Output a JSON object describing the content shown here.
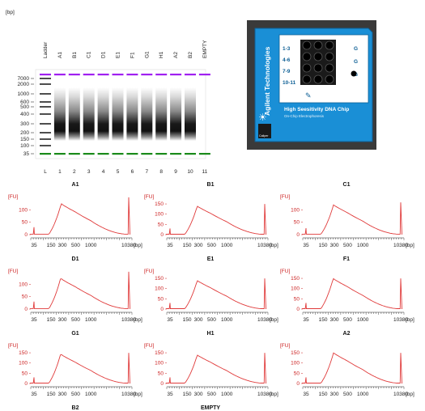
{
  "gel": {
    "unit_label": "[bp]",
    "y_ticks": [
      "7000",
      "2000",
      "1000",
      "600",
      "500",
      "400",
      "300",
      "200",
      "150",
      "100",
      "35"
    ],
    "lanes_top": [
      "Ladder",
      "A1",
      "B1",
      "C1",
      "D1",
      "E1",
      "F1",
      "G1",
      "H1",
      "A2",
      "B2",
      "EMPTY"
    ],
    "lanes_bottom": [
      "L",
      "1",
      "2",
      "3",
      "4",
      "5",
      "6",
      "7",
      "8",
      "9",
      "10",
      "11"
    ],
    "upper_marker_color": "#a020f0",
    "lower_marker_color": "#1b8a1b"
  },
  "chip": {
    "brand": "Agilent Technologies",
    "title": "High Seesitivity DNA Chip",
    "subtitle": "On-Chip Electrophoresis",
    "maker": "Caliper",
    "rows": [
      "1-3",
      "4-6",
      "7-9",
      "10-11"
    ],
    "side_labels": [
      "G",
      "G",
      "G"
    ],
    "color": "#1a8fd6"
  },
  "chart_data": [
    {
      "type": "line",
      "title": "A1",
      "ylabel": "[FU]",
      "xlabel": "[bp]",
      "y_ticks": [
        0,
        50,
        100
      ],
      "x_ticks": [
        "35",
        "150",
        "300",
        "500",
        "1000",
        "10380"
      ],
      "peak_fu": 125,
      "peak_bp": 280,
      "marker_fu": 150
    },
    {
      "type": "line",
      "title": "B1",
      "ylabel": "[FU]",
      "xlabel": "[bp]",
      "y_ticks": [
        0,
        50,
        100,
        150
      ],
      "x_ticks": [
        "35",
        "150",
        "300",
        "500",
        "1000",
        "10380"
      ],
      "peak_fu": 140,
      "peak_bp": 280,
      "marker_fu": 150
    },
    {
      "type": "line",
      "title": "C1",
      "ylabel": "[FU]",
      "xlabel": "[bp]",
      "y_ticks": [
        0,
        50,
        100
      ],
      "x_ticks": [
        "35",
        "150",
        "300",
        "500",
        "1000",
        "10380"
      ],
      "peak_fu": 120,
      "peak_bp": 285,
      "marker_fu": 130
    },
    {
      "type": "line",
      "title": "D1",
      "ylabel": "[FU]",
      "xlabel": "[bp]",
      "y_ticks": [
        0,
        50,
        100
      ],
      "x_ticks": [
        "35",
        "150",
        "300",
        "500",
        "1000",
        "10380"
      ],
      "peak_fu": 125,
      "peak_bp": 270,
      "marker_fu": 150
    },
    {
      "type": "line",
      "title": "E1",
      "ylabel": "[FU]",
      "xlabel": "[bp]",
      "y_ticks": [
        0,
        50,
        100,
        150
      ],
      "x_ticks": [
        "35",
        "150",
        "300",
        "500",
        "1000",
        "10380"
      ],
      "peak_fu": 140,
      "peak_bp": 280,
      "marker_fu": 150
    },
    {
      "type": "line",
      "title": "F1",
      "ylabel": "[FU]",
      "xlabel": "[bp]",
      "y_ticks": [
        0,
        50,
        100,
        150
      ],
      "x_ticks": [
        "35",
        "150",
        "300",
        "500",
        "1000",
        "10380"
      ],
      "peak_fu": 150,
      "peak_bp": 280,
      "marker_fu": 150
    },
    {
      "type": "line",
      "title": "G1",
      "ylabel": "[FU]",
      "xlabel": "[bp]",
      "y_ticks": [
        0,
        50,
        100,
        150
      ],
      "x_ticks": [
        "35",
        "150",
        "300",
        "500",
        "1000",
        "10380"
      ],
      "peak_fu": 145,
      "peak_bp": 270,
      "marker_fu": 150
    },
    {
      "type": "line",
      "title": "H1",
      "ylabel": "[FU]",
      "xlabel": "[bp]",
      "y_ticks": [
        0,
        50,
        100,
        150
      ],
      "x_ticks": [
        "35",
        "150",
        "300",
        "500",
        "1000",
        "10380"
      ],
      "peak_fu": 140,
      "peak_bp": 280,
      "marker_fu": 150
    },
    {
      "type": "line",
      "title": "A2",
      "ylabel": "[FU]",
      "xlabel": "[bp]",
      "y_ticks": [
        0,
        50,
        100,
        150
      ],
      "x_ticks": [
        "35",
        "150",
        "300",
        "500",
        "1000",
        "10380"
      ],
      "peak_fu": 150,
      "peak_bp": 285,
      "marker_fu": 150
    },
    {
      "type": "line",
      "title": "B2",
      "ylabel": "[FU]",
      "xlabel": "[bp]",
      "y_ticks": [
        0,
        50,
        100,
        150
      ],
      "x_ticks": [
        "35",
        "150",
        "300",
        "500",
        "1000",
        "10380"
      ],
      "peak_fu": 135,
      "peak_bp": 280,
      "marker_fu": 150
    },
    {
      "type": "line",
      "title": "EMPTY",
      "ylabel": "[FU]",
      "xlabel": "[bp]",
      "y_ticks": [
        0,
        50,
        100
      ],
      "x_ticks": [
        "35",
        "150",
        "300",
        "500",
        "1000",
        "10380"
      ],
      "peak_fu": 115,
      "peak_bp": 290,
      "marker_fu": 130
    }
  ]
}
